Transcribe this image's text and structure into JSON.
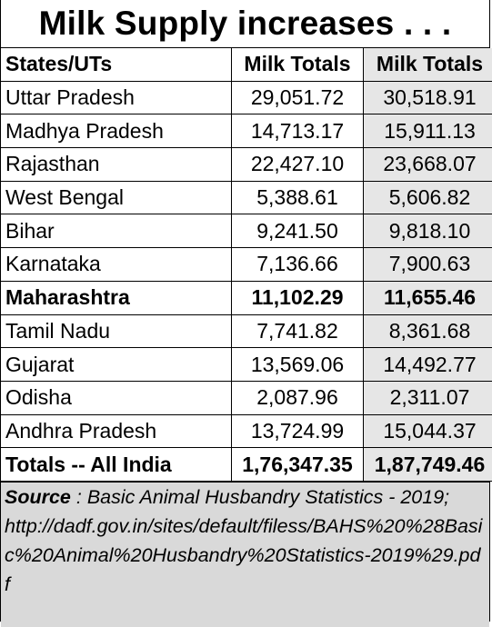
{
  "title": "Milk Supply increases . . .",
  "table": {
    "headers": [
      "States/UTs",
      "Milk Totals",
      "Milk Totals"
    ],
    "rows": [
      {
        "state": "Uttar Pradesh",
        "a": "29,051.72",
        "b": "30,518.91",
        "bold": false
      },
      {
        "state": "Madhya Pradesh",
        "a": "14,713.17",
        "b": "15,911.13",
        "bold": false
      },
      {
        "state": "Rajasthan",
        "a": "22,427.10",
        "b": "23,668.07",
        "bold": false
      },
      {
        "state": "West Bengal",
        "a": "5,388.61",
        "b": "5,606.82",
        "bold": false
      },
      {
        "state": "Bihar",
        "a": "9,241.50",
        "b": "9,818.10",
        "bold": false
      },
      {
        "state": "Karnataka",
        "a": "7,136.66",
        "b": "7,900.63",
        "bold": false
      },
      {
        "state": "Maharashtra",
        "a": "11,102.29",
        "b": "11,655.46",
        "bold": true
      },
      {
        "state": "Tamil Nadu",
        "a": "7,741.82",
        "b": "8,361.68",
        "bold": false
      },
      {
        "state": "Gujarat",
        "a": "13,569.06",
        "b": "14,492.77",
        "bold": false
      },
      {
        "state": "Odisha",
        "a": "2,087.96",
        "b": "2,311.07",
        "bold": false
      },
      {
        "state": "Andhra Pradesh",
        "a": "13,724.99",
        "b": "15,044.37",
        "bold": false
      }
    ],
    "total": {
      "label": "Totals -- All India",
      "a": "1,76,347.35",
      "b": "1,87,749.46"
    }
  },
  "source": {
    "label": "Source",
    "separator": " :  ",
    "text": "Basic Animal Husbandry Statistics - 2019;",
    "url": "http://dadf.gov.in/sites/default/filess/BAHS%20%28Basic%20Animal%20Husbandry%20Statistics-2019%29.pdf"
  },
  "colors": {
    "shaded_column": "#e6e6e6",
    "source_background": "#d9d9d9"
  }
}
